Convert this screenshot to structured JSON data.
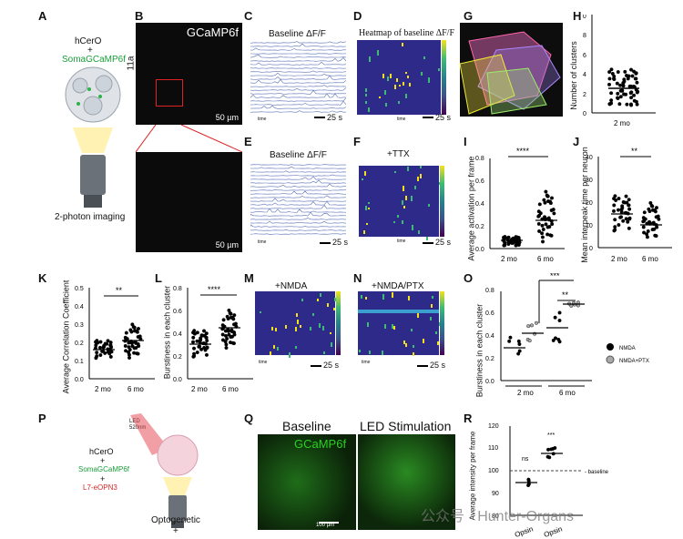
{
  "panels": {
    "A": {
      "label": "A",
      "line1": "hCerO",
      "line2": "SomaGCaMP6f",
      "plus": "+",
      "caption": "2-photon imaging"
    },
    "B": {
      "label": "B",
      "title": "GCaMP6f",
      "side": "11a",
      "scale_top": "50 µm",
      "scale_bot": "50 µm"
    },
    "C": {
      "label": "C",
      "title": "Baseline ΔF/F",
      "time": "25 s",
      "tick": "time"
    },
    "D": {
      "label": "D",
      "title": "Heatmap of baseline ΔF/F",
      "time": "25 s",
      "tick": "time"
    },
    "E": {
      "label": "E",
      "title": "Baseline ΔF/F",
      "time": "25 s",
      "tick": "time"
    },
    "F": {
      "label": "F",
      "title": "+TTX",
      "time": "25 s",
      "tick": "time"
    },
    "G": {
      "label": "G"
    },
    "H": {
      "label": "H",
      "ylabel": "Number of clusters",
      "xcat": "2 mo"
    },
    "I": {
      "label": "I",
      "ylabel": "Average activation per frame",
      "sig": "****",
      "xcats": [
        "2 mo",
        "6 mo"
      ]
    },
    "J": {
      "label": "J",
      "ylabel": "Mean interpeak time per neuron",
      "sig": "**",
      "xcats": [
        "2 mo",
        "6 mo"
      ]
    },
    "K": {
      "label": "K",
      "ylabel": "Average Correlation Coefficient",
      "sig": "**",
      "xcats": [
        "2 mo",
        "6 mo"
      ]
    },
    "L": {
      "label": "L",
      "ylabel": "Burstiness in each cluster",
      "sig": "****",
      "xcats": [
        "2 mo",
        "6 mo"
      ]
    },
    "M": {
      "label": "M",
      "title": "+NMDA",
      "time": "25 s",
      "tick": "time"
    },
    "N": {
      "label": "N",
      "title": "+NMDA/PTX",
      "time": "25 s",
      "tick": "time"
    },
    "O": {
      "label": "O",
      "ylabel": "Burstiness in each cluster",
      "sig1": "***",
      "sig2": "**",
      "xcats": [
        "2 mo",
        "6 mo"
      ],
      "legend": [
        "NMDA",
        "NMDA+PTX"
      ]
    },
    "P": {
      "label": "P",
      "led1": "LED",
      "led2": "520nm",
      "line1": "hCerO",
      "plus1": "+",
      "line2": "SomaGCaMP6f",
      "plus2": "+",
      "line3": "L7-eOPN3",
      "caption": "Optogenetic",
      "plus3": "+"
    },
    "Q": {
      "label": "Q",
      "title1": "Baseline",
      "title2": "LED Stimulation",
      "inner": "GCaMP6f",
      "scale": "100 µm"
    },
    "R": {
      "label": "R",
      "ylabel": "Average intensity per frame",
      "ns": "ns",
      "sig": "***",
      "baseline": "- baseline",
      "xcats": [
        "Opsin",
        "Opsin"
      ]
    }
  },
  "watermark": "公众号 · Hunter-Organs",
  "chart_data": [
    {
      "type": "scatter",
      "panel": "H",
      "ylabel": "Number of clusters",
      "ylim": [
        0,
        10
      ],
      "yticks": [
        0,
        2,
        4,
        6,
        8,
        10
      ],
      "categories": [
        "2 mo"
      ],
      "median": 2.5
    },
    {
      "type": "scatter",
      "panel": "I",
      "ylabel": "Average activation per frame",
      "ylim": [
        0,
        0.8
      ],
      "yticks": [
        0,
        0.2,
        0.4,
        0.6,
        0.8
      ],
      "categories": [
        "2 mo",
        "6 mo"
      ],
      "medians": [
        0.07,
        0.25
      ]
    },
    {
      "type": "scatter",
      "panel": "J",
      "ylabel": "Mean interpeak time per neuron",
      "ylim": [
        0,
        40
      ],
      "yticks": [
        0,
        10,
        20,
        30,
        40
      ],
      "categories": [
        "2 mo",
        "6 mo"
      ],
      "medians": [
        15,
        10
      ]
    },
    {
      "type": "scatter",
      "panel": "K",
      "ylabel": "Average Correlation Coefficient",
      "ylim": [
        0,
        0.5
      ],
      "yticks": [
        0,
        0.1,
        0.2,
        0.3,
        0.4,
        0.5
      ],
      "categories": [
        "2 mo",
        "6 mo"
      ],
      "medians": [
        0.16,
        0.21
      ]
    },
    {
      "type": "scatter",
      "panel": "L",
      "ylabel": "Burstiness in each cluster",
      "ylim": [
        0,
        0.8
      ],
      "yticks": [
        0,
        0.2,
        0.4,
        0.6,
        0.8
      ],
      "categories": [
        "2 mo",
        "6 mo"
      ],
      "medians": [
        0.3,
        0.46
      ]
    },
    {
      "type": "scatter",
      "panel": "O",
      "ylabel": "Burstiness in each cluster",
      "ylim": [
        0,
        0.8
      ],
      "yticks": [
        0,
        0.2,
        0.4,
        0.6,
        0.8
      ],
      "categories": [
        "2 mo",
        "6 mo"
      ],
      "series": [
        {
          "name": "NMDA",
          "values": [
            0.3,
            0.46
          ]
        },
        {
          "name": "NMDA+PTX",
          "values": [
            0.42,
            0.67
          ]
        }
      ]
    },
    {
      "type": "scatter",
      "panel": "R",
      "ylabel": "Average intensity per frame",
      "ylim": [
        80,
        120
      ],
      "yticks": [
        80,
        90,
        100,
        110,
        120
      ],
      "categories": [
        "Opsin",
        "Opsin"
      ],
      "values": [
        95,
        108
      ],
      "baseline": 100
    }
  ]
}
